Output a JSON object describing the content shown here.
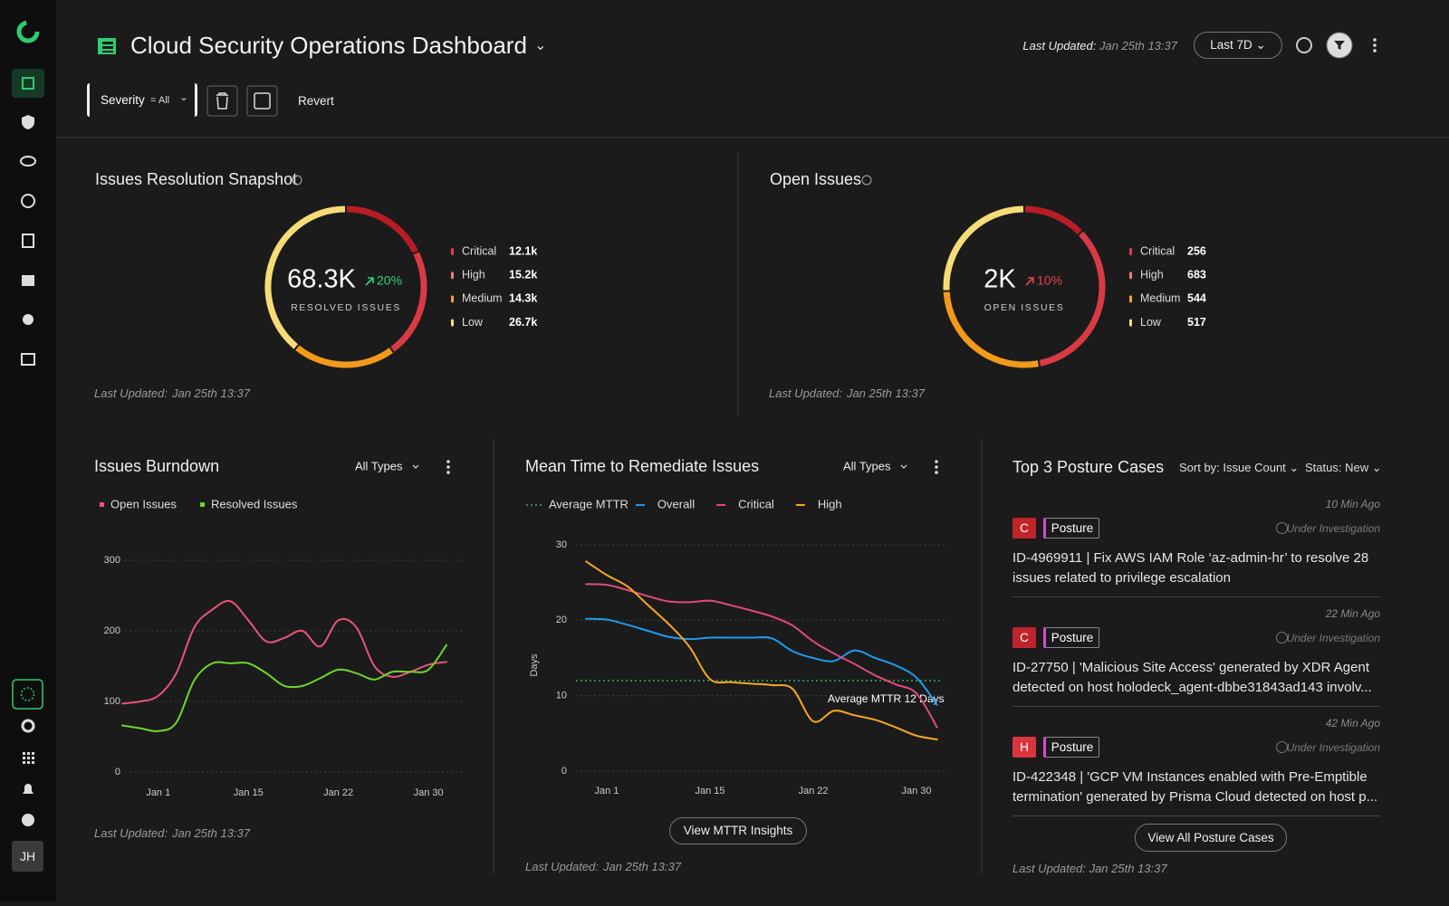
{
  "sidebar": {
    "avatar": "JH"
  },
  "header": {
    "title": "Cloud Security Operations Dashboard",
    "updated_label": "Last Updated:",
    "updated": "Jan 25th 13:37",
    "range": "Last 7D"
  },
  "toolbar": {
    "filter_name": "Severity",
    "filter_value": "= All",
    "revert": "Revert"
  },
  "chart_data": [
    {
      "type": "pie",
      "donut": true,
      "title": "Issues Resolution Snapshot",
      "total_label": "68.3K",
      "change": "20%",
      "change_color": "#2fd576",
      "caption": "RESOLVED ISSUES",
      "categories": [
        "Critical",
        "High",
        "Medium",
        "Low"
      ],
      "values": [
        12100,
        15200,
        14300,
        26700
      ],
      "value_labels": [
        "12.1k",
        "15.2k",
        "14.3k",
        "26.7k"
      ],
      "colors": [
        "#b81d26",
        "#d93a44",
        "#f29a1a",
        "#f6dc76"
      ],
      "legend_colors": [
        "#e0395a",
        "#ef7d86",
        "#f5a623",
        "#f7e27a"
      ],
      "updated_label": "Last Updated:",
      "updated": "Jan 25th 13:37"
    },
    {
      "type": "pie",
      "donut": true,
      "title": "Open Issues",
      "total_label": "2K",
      "change": "10%",
      "change_color": "#e8434b",
      "caption": "OPEN ISSUES",
      "categories": [
        "Critical",
        "High",
        "Medium",
        "Low"
      ],
      "values": [
        256,
        683,
        544,
        517
      ],
      "colors": [
        "#b81d26",
        "#d93a44",
        "#f29a1a",
        "#f6dc76"
      ],
      "legend_colors": [
        "#e0395a",
        "#ef7d86",
        "#f5a623",
        "#f7e27a"
      ],
      "updated_label": "Last Updated:",
      "updated": "Jan 25th 13:37"
    },
    {
      "type": "line",
      "title": "Issues Burndown",
      "filter": "All Types",
      "categories": [
        null,
        null,
        "Jan 1",
        null,
        null,
        null,
        null,
        "Jan 15",
        null,
        null,
        null,
        null,
        "Jan 22",
        null,
        null,
        null,
        null,
        "Jan 30",
        null
      ],
      "series": [
        {
          "name": "Open Issues",
          "color": "#e8557a",
          "values": [
            97,
            100,
            108,
            140,
            205,
            230,
            242,
            215,
            185,
            190,
            200,
            178,
            215,
            205,
            150,
            135,
            142,
            152,
            156
          ]
        },
        {
          "name": "Resolved Issues",
          "color": "#6fd62a",
          "values": [
            66,
            62,
            58,
            70,
            130,
            154,
            154,
            154,
            140,
            122,
            122,
            133,
            145,
            140,
            131,
            142,
            142,
            145,
            180
          ]
        }
      ],
      "ylim": [
        0,
        300
      ],
      "yticks": [
        0,
        100,
        200,
        300
      ],
      "grid": true,
      "updated_label": "Last Updated:",
      "updated": "Jan 25th 13:37"
    },
    {
      "type": "line",
      "title": "Mean Time to Remediate Issues",
      "filter": "All Types",
      "ylabel": "Days",
      "categories": [
        null,
        null,
        "Jan 1",
        null,
        null,
        null,
        null,
        "Jan 15",
        null,
        null,
        null,
        null,
        "Jan 22",
        null,
        null,
        null,
        null,
        "Jan 30",
        null
      ],
      "average": {
        "name": "Average MTTR",
        "value": 12,
        "label": "Average MTTR 12 Days",
        "color": "#2ecc71"
      },
      "series": [
        {
          "name": "Overall",
          "color": "#1e9bf0",
          "values": [
            null,
            20.2,
            20.1,
            19.4,
            18.6,
            17.8,
            17.5,
            17.7,
            17.7,
            17.7,
            17.6,
            15.9,
            15.0,
            14.6,
            16.0,
            15.0,
            14.0,
            12.4,
            8.8
          ]
        },
        {
          "name": "Critical",
          "color": "#e04a7a",
          "values": [
            null,
            24.8,
            24.7,
            24,
            23.2,
            22.5,
            22.4,
            22.6,
            22,
            21.3,
            20.5,
            19.3,
            17.2,
            15.6,
            14.2,
            12.7,
            11.5,
            10.3,
            5.8
          ]
        },
        {
          "name": "High",
          "color": "#f7a823",
          "values": [
            null,
            27.8,
            26,
            24.5,
            22,
            19.5,
            16.5,
            12.2,
            11.8,
            11.6,
            11.4,
            10.9,
            6.6,
            8,
            7.4,
            6.8,
            5.8,
            4.7,
            4.2
          ]
        }
      ],
      "ylim": [
        0,
        30
      ],
      "yticks": [
        0,
        10,
        20,
        30
      ],
      "grid": true,
      "button": "View MTTR Insights",
      "updated_label": "Last Updated:",
      "updated": "Jan 25th 13:37"
    }
  ],
  "posture": {
    "title": "Top 3 Posture Cases",
    "sort": "Sort by: Issue Count",
    "status_filter": "Status: New",
    "cases": [
      {
        "time": "10 Min Ago",
        "severity": "C",
        "severity_color": "#c0242b",
        "tag": "Posture",
        "status": "Under Investigation",
        "text": "ID-4969911 | Fix AWS IAM Role ‘az-admin-hr’ to resolve 28 issues related to privilege escalation"
      },
      {
        "time": "22 Min Ago",
        "severity": "C",
        "severity_color": "#c0242b",
        "tag": "Posture",
        "status": "Under Investigation",
        "text": "ID-27750 | 'Malicious Site Access' generated by XDR Agent detected on host holodeck_agent-dbbe31843ad143 involv..."
      },
      {
        "time": "42 Min Ago",
        "severity": "H",
        "severity_color": "#d9353d",
        "tag": "Posture",
        "status": "Under Investigation",
        "text": "ID-422348 | 'GCP VM Instances enabled with Pre-Emptible termination' generated by Prisma Cloud detected on host p..."
      }
    ],
    "button": "View All Posture Cases",
    "updated_label": "Last Updated:",
    "updated": "Jan 25th 13:37"
  }
}
